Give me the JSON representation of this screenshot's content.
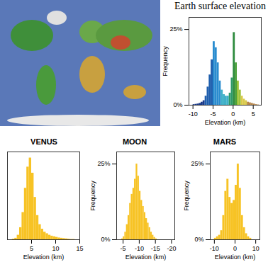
{
  "chart_data": [
    {
      "type": "histogram",
      "title": "Earth surface elevation",
      "x_label": "Elevation (km)",
      "y_label": "Frequency",
      "bins": [
        -11,
        -10.5,
        -10,
        -9.5,
        -9,
        -8.5,
        -8,
        -7.5,
        -7,
        -6.5,
        -6,
        -5.5,
        -5,
        -4.5,
        -4,
        -3.5,
        -3,
        -2.5,
        -2,
        -1.5,
        -1,
        -0.5,
        0,
        0.5,
        1,
        1.5,
        2,
        2.5,
        3,
        3.5,
        4,
        4.5,
        5,
        5.5,
        6,
        6.5,
        7
      ],
      "values": [
        0,
        0,
        0.2,
        0.3,
        0.4,
        0.6,
        1,
        1.5,
        3,
        6,
        10,
        15,
        21,
        19,
        14,
        8,
        5,
        3.5,
        3,
        3,
        4,
        9,
        24,
        14,
        8,
        5,
        3,
        2,
        1.5,
        1,
        0.8,
        0.6,
        0.4,
        0.2,
        0.1,
        0
      ],
      "colors": [
        "#1a3a8a",
        "#1a3a8a",
        "#1a3a8a",
        "#1a3a8a",
        "#1a3a8a",
        "#1a3a8a",
        "#1a3a8a",
        "#1a3a8a",
        "#1f5fae",
        "#1f5fae",
        "#1f5fae",
        "#1f5fae",
        "#2a8ccf",
        "#2a8ccf",
        "#2a8ccf",
        "#2a8ccf",
        "#3fb0c8",
        "#3fb0c8",
        "#3fb0c8",
        "#3fb0c8",
        "#2e9a6a",
        "#2e9a6a",
        "#2e8b3e",
        "#4aa03a",
        "#9cc23a",
        "#9cc23a",
        "#d9c94a",
        "#d9c94a",
        "#d9c94a",
        "#b8864a",
        "#b8864a",
        "#b8864a",
        "#b8864a",
        "#b8864a",
        "#b8864a",
        "#b8864a"
      ],
      "xlim": [
        -11,
        7
      ],
      "xticks": [
        -10,
        -5,
        0,
        5
      ],
      "ylim": [
        0,
        29
      ],
      "yticks": [
        {
          "value": 0,
          "label": "0%"
        },
        {
          "value": 25,
          "label": "25%"
        }
      ]
    },
    {
      "type": "histogram",
      "title": "VENUS",
      "x_label": "Elevation (km)",
      "bins": [
        0,
        0.5,
        1,
        1.5,
        2,
        2.5,
        3,
        3.5,
        4,
        4.5,
        5,
        5.5,
        6,
        6.5,
        7,
        7.5,
        8,
        8.5,
        9,
        9.5,
        10,
        10.5,
        11,
        11.5,
        12,
        12.5,
        13,
        13.5,
        14,
        14.5,
        15
      ],
      "values": [
        0,
        0,
        0.2,
        0.5,
        1.5,
        4,
        9,
        17,
        24,
        27,
        22,
        14,
        8,
        5,
        3.5,
        2.5,
        2,
        1.5,
        1.2,
        1,
        0.8,
        0.6,
        0.5,
        0.4,
        0.3,
        0.2,
        0.1,
        0.1,
        0,
        0
      ],
      "color": "#f7c325",
      "xlim": [
        0,
        15
      ],
      "xticks": [
        5,
        10,
        15
      ],
      "ylim": [
        0,
        29
      ],
      "tick_labels": "x"
    },
    {
      "type": "histogram",
      "title": "MOON",
      "x_label": "Elevation (km)",
      "y_label": "Frequency",
      "bins": [
        -16,
        -15.5,
        -15,
        -14.5,
        -14,
        -13.5,
        -13,
        -12.5,
        -12,
        -11.5,
        -11,
        -10.5,
        -10,
        -9.5,
        -9,
        -8.5,
        -8,
        -7.5,
        -7,
        -6.5,
        -6,
        -5.5,
        -5,
        -4.5,
        -4
      ],
      "values": [
        0,
        0.3,
        0.8,
        1.5,
        2.5,
        4,
        5.5,
        7,
        9,
        11,
        13,
        16,
        21,
        25,
        20,
        17,
        15,
        12,
        8,
        5,
        2.5,
        1,
        0.3,
        0
      ],
      "color": "#f7c325",
      "xlim": [
        -3,
        -21
      ],
      "xticks": [
        -5,
        -10,
        -15,
        -20
      ],
      "ylim": [
        0,
        29
      ],
      "yticks": [
        {
          "value": 0,
          "label": "0%"
        },
        {
          "value": 25,
          "label": "25%"
        }
      ]
    },
    {
      "type": "histogram",
      "title": "MARS",
      "x_label": "Elevation (km)",
      "y_label": "Frequency",
      "bins": [
        -10,
        -9,
        -8,
        -7,
        -6,
        -5,
        -4,
        -3,
        -2,
        -1,
        0,
        1,
        2,
        3,
        4,
        5,
        6,
        7,
        8
      ],
      "values": [
        0.5,
        1,
        1.5,
        3,
        8,
        16,
        20,
        14,
        12,
        13,
        18,
        25,
        17,
        8,
        4,
        2,
        1,
        0.5
      ],
      "color": "#f7c325",
      "xlim": [
        -12,
        12
      ],
      "xticks": [
        -10,
        0,
        10
      ],
      "ylim": [
        0,
        29
      ],
      "yticks": [
        {
          "value": 0,
          "label": "0%"
        },
        {
          "value": 25,
          "label": "25%"
        }
      ]
    }
  ]
}
